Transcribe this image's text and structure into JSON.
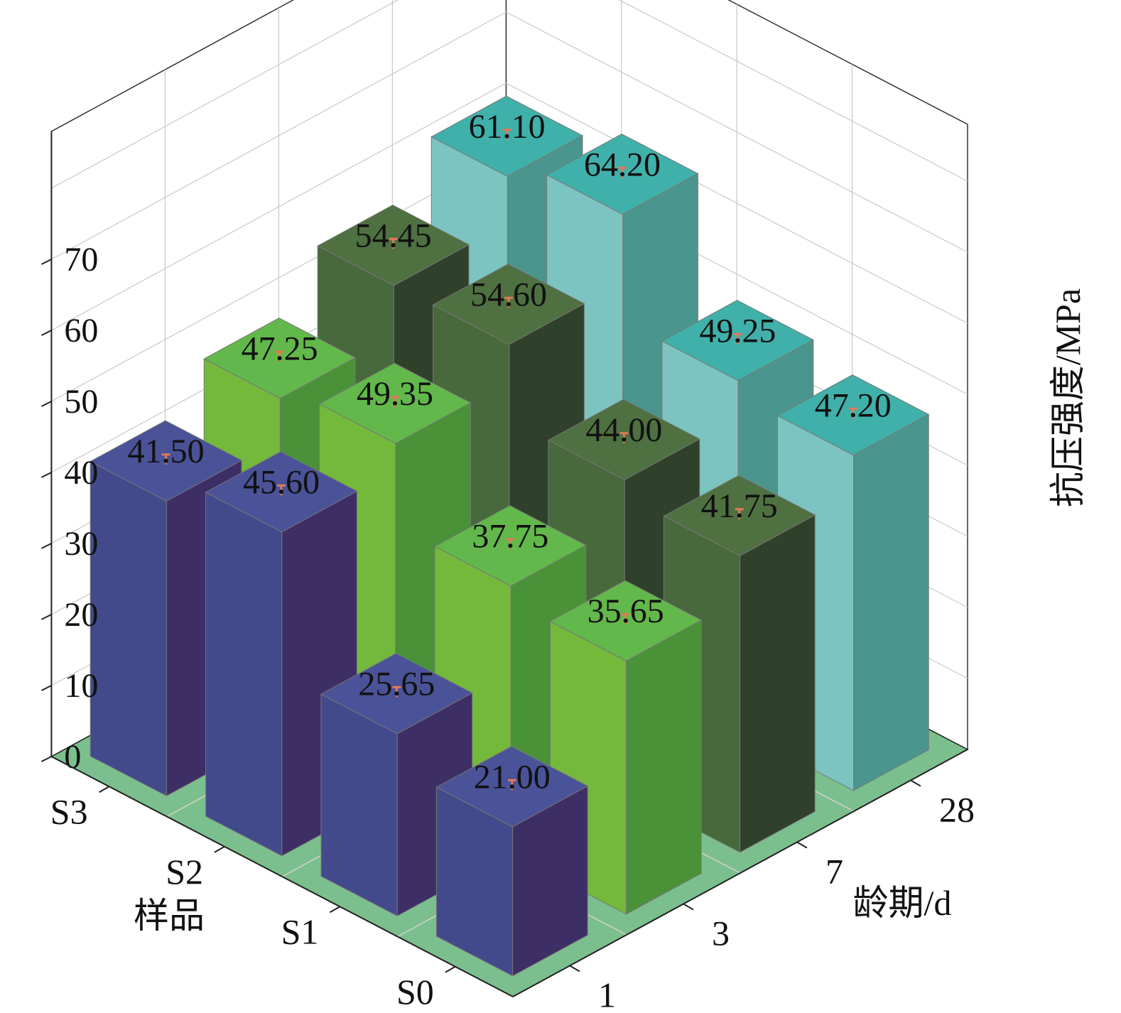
{
  "chart_data": {
    "type": "bar3d",
    "z_label": "抗压强度/MPa",
    "sample_label": "样品",
    "age_label": "龄期/d",
    "samples": [
      "S0",
      "S1",
      "S2",
      "S3"
    ],
    "ages": [
      "1",
      "3",
      "7",
      "28"
    ],
    "z_ticks": [
      "0",
      "10",
      "20",
      "30",
      "40",
      "50",
      "60",
      "70"
    ],
    "zlim": [
      0,
      70
    ],
    "grid": true,
    "series": [
      {
        "age": "1",
        "values": {
          "S0": 21.0,
          "S1": 25.65,
          "S2": 45.6,
          "S3": 41.5
        },
        "labels": {
          "S0": "21.00",
          "S1": "25.65",
          "S2": "45.60",
          "S3": "41.50"
        }
      },
      {
        "age": "3",
        "values": {
          "S0": 35.65,
          "S1": 37.75,
          "S2": 49.35,
          "S3": 47.25
        },
        "labels": {
          "S0": "35.65",
          "S1": "37.75",
          "S2": "49.35",
          "S3": "47.25"
        }
      },
      {
        "age": "7",
        "values": {
          "S0": 41.75,
          "S1": 44.0,
          "S2": 54.6,
          "S3": 54.45
        },
        "labels": {
          "S0": "41.75",
          "S1": "44.00",
          "S2": "54.60",
          "S3": "54.45"
        }
      },
      {
        "age": "28",
        "values": {
          "S0": 47.2,
          "S1": 49.25,
          "S2": 64.2,
          "S3": 61.1
        },
        "labels": {
          "S0": "47.20",
          "S1": "49.25",
          "S2": "64.20",
          "S3": "61.10"
        }
      }
    ],
    "colors": {
      "1": {
        "front": "#434a8c",
        "side": "#3d2e66",
        "top": "#4a5298"
      },
      "3": {
        "front": "#74b83c",
        "side": "#4a9238",
        "top": "#62b84a"
      },
      "7": {
        "front": "#47693c",
        "side": "#2f402b",
        "top": "#4f7040"
      },
      "28": {
        "front": "#7cc4c2",
        "side": "#4a968e",
        "top": "#40b0aa"
      },
      "floor": "#7cbf8e",
      "grid": "#c8c8c8",
      "errorbar": "#e07a5a"
    }
  }
}
